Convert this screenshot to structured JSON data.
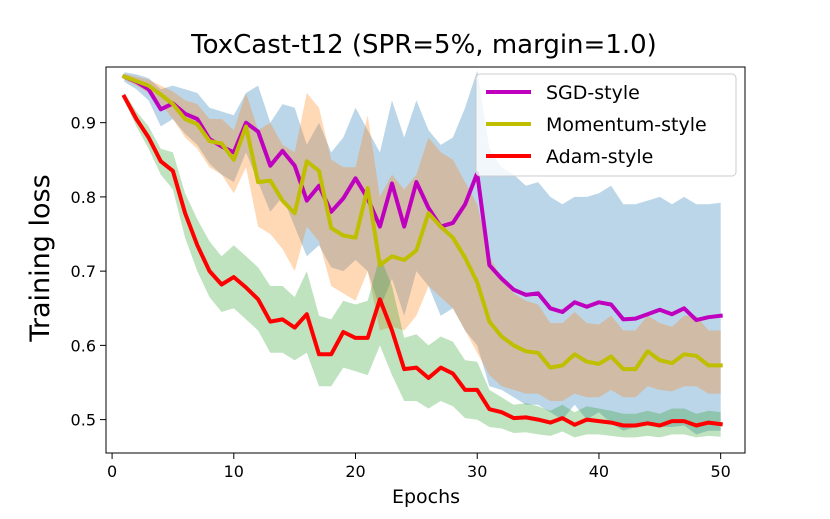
{
  "chart_data": {
    "type": "line",
    "title": "ToxCast-t12 (SPR=5%, margin=1.0)",
    "xlabel": "Epochs",
    "ylabel": "Training loss",
    "xlim": [
      -0.5,
      52
    ],
    "ylim": [
      0.455,
      0.975
    ],
    "xticks": [
      0,
      10,
      20,
      30,
      40,
      50
    ],
    "yticks": [
      0.5,
      0.6,
      0.7,
      0.8,
      0.9
    ],
    "grid": false,
    "legend_position": "top-right",
    "x": [
      1,
      2,
      3,
      4,
      5,
      6,
      7,
      8,
      9,
      10,
      11,
      12,
      13,
      14,
      15,
      16,
      17,
      18,
      19,
      20,
      21,
      22,
      23,
      24,
      25,
      26,
      27,
      28,
      29,
      30,
      31,
      32,
      33,
      34,
      35,
      36,
      37,
      38,
      39,
      40,
      41,
      42,
      43,
      44,
      45,
      46,
      47,
      48,
      49,
      50
    ],
    "series": [
      {
        "name": "SGD-style",
        "color": "#bf00bf",
        "band_color": "#1f77b4",
        "values": [
          0.962,
          0.955,
          0.945,
          0.918,
          0.926,
          0.912,
          0.905,
          0.878,
          0.868,
          0.86,
          0.9,
          0.888,
          0.842,
          0.862,
          0.842,
          0.795,
          0.815,
          0.78,
          0.798,
          0.825,
          0.798,
          0.76,
          0.818,
          0.76,
          0.82,
          0.785,
          0.76,
          0.765,
          0.79,
          0.832,
          0.708,
          0.69,
          0.675,
          0.668,
          0.67,
          0.65,
          0.645,
          0.658,
          0.652,
          0.658,
          0.655,
          0.635,
          0.636,
          0.642,
          0.648,
          0.642,
          0.65,
          0.634,
          0.638,
          0.64
        ],
        "lower": [
          0.955,
          0.945,
          0.93,
          0.895,
          0.905,
          0.885,
          0.87,
          0.845,
          0.83,
          0.82,
          0.86,
          0.82,
          0.78,
          0.8,
          0.76,
          0.72,
          0.735,
          0.705,
          0.7,
          0.715,
          0.7,
          0.65,
          0.69,
          0.64,
          0.7,
          0.68,
          0.64,
          0.65,
          0.62,
          0.6,
          0.545,
          0.54,
          0.53,
          0.52,
          0.52,
          0.51,
          0.5,
          0.52,
          0.5,
          0.51,
          0.495,
          0.485,
          0.49,
          0.495,
          0.49,
          0.49,
          0.492,
          0.48,
          0.485,
          0.485
        ],
        "upper": [
          0.968,
          0.965,
          0.96,
          0.945,
          0.95,
          0.945,
          0.94,
          0.92,
          0.915,
          0.91,
          0.94,
          0.95,
          0.9,
          0.925,
          0.92,
          0.87,
          0.9,
          0.86,
          0.88,
          0.92,
          0.89,
          0.86,
          0.93,
          0.88,
          0.93,
          0.89,
          0.87,
          0.88,
          0.92,
          0.97,
          0.865,
          0.84,
          0.83,
          0.815,
          0.82,
          0.8,
          0.79,
          0.8,
          0.8,
          0.805,
          0.815,
          0.79,
          0.79,
          0.795,
          0.8,
          0.79,
          0.8,
          0.79,
          0.79,
          0.792
        ]
      },
      {
        "name": "Momentum-style",
        "color": "#bfbf00",
        "band_color": "#ff7f0e",
        "values": [
          0.962,
          0.956,
          0.95,
          0.938,
          0.925,
          0.905,
          0.898,
          0.875,
          0.872,
          0.85,
          0.895,
          0.82,
          0.822,
          0.795,
          0.778,
          0.848,
          0.835,
          0.758,
          0.748,
          0.745,
          0.812,
          0.708,
          0.72,
          0.715,
          0.728,
          0.778,
          0.76,
          0.745,
          0.718,
          0.685,
          0.632,
          0.612,
          0.6,
          0.592,
          0.59,
          0.57,
          0.573,
          0.588,
          0.578,
          0.575,
          0.585,
          0.568,
          0.568,
          0.592,
          0.58,
          0.576,
          0.588,
          0.586,
          0.573,
          0.573
        ],
        "lower": [
          0.958,
          0.95,
          0.94,
          0.925,
          0.905,
          0.88,
          0.865,
          0.84,
          0.83,
          0.805,
          0.84,
          0.76,
          0.75,
          0.73,
          0.7,
          0.76,
          0.74,
          0.68,
          0.67,
          0.66,
          0.7,
          0.62,
          0.625,
          0.62,
          0.64,
          0.68,
          0.665,
          0.65,
          0.62,
          0.59,
          0.56,
          0.545,
          0.54,
          0.535,
          0.535,
          0.525,
          0.525,
          0.535,
          0.53,
          0.53,
          0.54,
          0.53,
          0.53,
          0.545,
          0.54,
          0.538,
          0.545,
          0.545,
          0.535,
          0.535
        ],
        "upper": [
          0.966,
          0.962,
          0.958,
          0.95,
          0.942,
          0.93,
          0.925,
          0.905,
          0.905,
          0.89,
          0.94,
          0.89,
          0.9,
          0.87,
          0.86,
          0.94,
          0.92,
          0.85,
          0.84,
          0.84,
          0.91,
          0.8,
          0.83,
          0.81,
          0.83,
          0.88,
          0.86,
          0.85,
          0.82,
          0.79,
          0.72,
          0.69,
          0.67,
          0.66,
          0.655,
          0.63,
          0.63,
          0.645,
          0.63,
          0.628,
          0.64,
          0.62,
          0.62,
          0.64,
          0.63,
          0.625,
          0.64,
          0.64,
          0.62,
          0.62
        ]
      },
      {
        "name": "Adam-style",
        "color": "#ff0000",
        "band_color": "#2ca02c",
        "values": [
          0.935,
          0.905,
          0.88,
          0.848,
          0.835,
          0.778,
          0.735,
          0.7,
          0.682,
          0.692,
          0.678,
          0.662,
          0.632,
          0.635,
          0.624,
          0.642,
          0.588,
          0.588,
          0.618,
          0.61,
          0.61,
          0.662,
          0.62,
          0.568,
          0.57,
          0.556,
          0.57,
          0.562,
          0.54,
          0.54,
          0.514,
          0.51,
          0.502,
          0.503,
          0.5,
          0.496,
          0.502,
          0.493,
          0.5,
          0.498,
          0.496,
          0.492,
          0.492,
          0.495,
          0.492,
          0.498,
          0.498,
          0.492,
          0.496,
          0.494
        ],
        "lower": [
          0.93,
          0.895,
          0.865,
          0.83,
          0.81,
          0.745,
          0.7,
          0.665,
          0.645,
          0.65,
          0.635,
          0.62,
          0.59,
          0.59,
          0.58,
          0.59,
          0.545,
          0.545,
          0.57,
          0.565,
          0.56,
          0.6,
          0.56,
          0.525,
          0.525,
          0.515,
          0.525,
          0.518,
          0.502,
          0.5,
          0.49,
          0.488,
          0.482,
          0.483,
          0.48,
          0.478,
          0.484,
          0.476,
          0.48,
          0.48,
          0.478,
          0.476,
          0.476,
          0.478,
          0.476,
          0.48,
          0.48,
          0.476,
          0.478,
          0.477
        ],
        "upper": [
          0.94,
          0.915,
          0.895,
          0.865,
          0.86,
          0.805,
          0.77,
          0.74,
          0.72,
          0.735,
          0.72,
          0.705,
          0.68,
          0.68,
          0.665,
          0.7,
          0.64,
          0.635,
          0.66,
          0.655,
          0.66,
          0.72,
          0.68,
          0.61,
          0.615,
          0.6,
          0.612,
          0.605,
          0.58,
          0.578,
          0.54,
          0.53,
          0.52,
          0.522,
          0.518,
          0.512,
          0.52,
          0.51,
          0.518,
          0.515,
          0.512,
          0.508,
          0.508,
          0.512,
          0.508,
          0.515,
          0.515,
          0.508,
          0.512,
          0.51
        ]
      }
    ]
  }
}
